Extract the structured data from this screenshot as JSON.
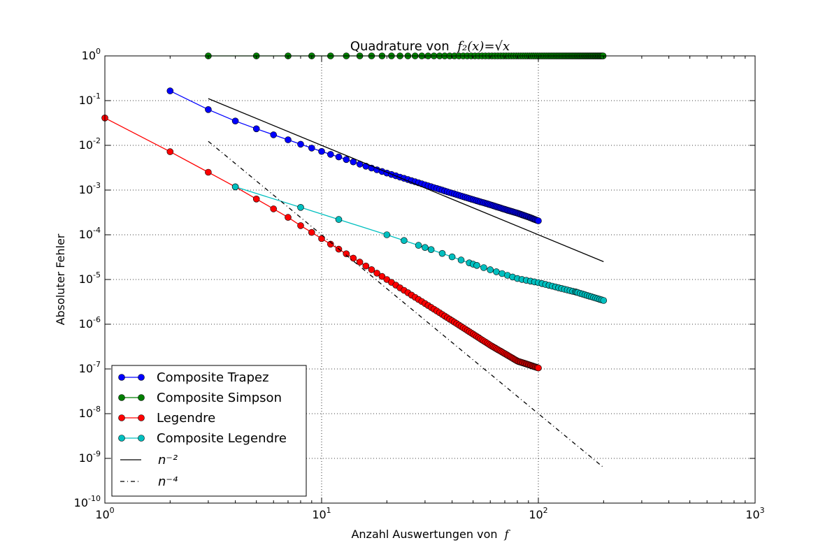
{
  "chart_data": {
    "type": "line",
    "title": "Quadrature von",
    "title_math": "f₂(x)=√x",
    "xlabel": "Anzahl Auswertungen von",
    "xlabel_math": "f",
    "ylabel": "Absoluter Fehler",
    "xscale": "log",
    "yscale": "log",
    "xlim": [
      1,
      1000
    ],
    "ylim": [
      1e-10,
      1
    ],
    "grid": true,
    "legend_position": "lower-left",
    "x_ticks": [
      {
        "base": "10",
        "exp": "0",
        "value": 1
      },
      {
        "base": "10",
        "exp": "1",
        "value": 10
      },
      {
        "base": "10",
        "exp": "2",
        "value": 100
      },
      {
        "base": "10",
        "exp": "3",
        "value": 1000
      }
    ],
    "y_ticks": [
      {
        "base": "10",
        "exp": "0",
        "value": 1
      },
      {
        "base": "10",
        "exp": "-1",
        "value": 0.1
      },
      {
        "base": "10",
        "exp": "-2",
        "value": 0.01
      },
      {
        "base": "10",
        "exp": "-3",
        "value": 0.001
      },
      {
        "base": "10",
        "exp": "-4",
        "value": 0.0001
      },
      {
        "base": "10",
        "exp": "-5",
        "value": 1e-05
      },
      {
        "base": "10",
        "exp": "-6",
        "value": 1e-06
      },
      {
        "base": "10",
        "exp": "-7",
        "value": 1e-07
      },
      {
        "base": "10",
        "exp": "-8",
        "value": 1e-08
      },
      {
        "base": "10",
        "exp": "-9",
        "value": 1e-09
      },
      {
        "base": "10",
        "exp": "-10",
        "value": 1e-10
      }
    ],
    "series": [
      {
        "name": "Composite Trapez",
        "color": "#0000ff",
        "marker": "circle",
        "line_style": "solid",
        "points": [
          [
            2,
            0.165
          ],
          [
            3,
            0.063
          ],
          [
            4,
            0.035
          ],
          [
            5,
            0.0235
          ],
          [
            6,
            0.0172
          ],
          [
            7,
            0.0133
          ],
          [
            8,
            0.0106
          ],
          [
            9,
            0.0087
          ],
          [
            10,
            0.0073
          ],
          [
            12,
            0.0055
          ],
          [
            15,
            0.0038
          ],
          [
            20,
            0.0024
          ],
          [
            25,
            0.00172
          ],
          [
            30,
            0.00131
          ],
          [
            40,
            0.00085
          ],
          [
            50,
            0.00061
          ],
          [
            60,
            0.00047
          ],
          [
            70,
            0.00037
          ],
          [
            80,
            0.000305
          ],
          [
            90,
            0.00025
          ],
          [
            100,
            0.000205
          ]
        ],
        "dense_fill": {
          "x_from": 10,
          "x_to": 100,
          "step": 1
        }
      },
      {
        "name": "Composite Simpson",
        "color": "#007f00",
        "marker": "circle",
        "line_style": "solid",
        "points": [
          [
            3,
            1
          ],
          [
            5,
            1
          ],
          [
            7,
            1
          ],
          [
            9,
            1
          ],
          [
            11,
            1
          ],
          [
            15,
            1
          ],
          [
            21,
            1
          ],
          [
            31,
            1
          ],
          [
            51,
            1
          ],
          [
            101,
            1
          ],
          [
            151,
            1
          ],
          [
            199,
            1
          ]
        ],
        "dense_fill": {
          "x_from": 11,
          "x_to": 199,
          "step": 2
        }
      },
      {
        "name": "Legendre",
        "color": "#ff0000",
        "marker": "circle",
        "line_style": "solid",
        "points": [
          [
            1,
            0.041
          ],
          [
            2,
            0.0072
          ],
          [
            3,
            0.0025
          ],
          [
            4,
            0.00118
          ],
          [
            5,
            0.00063
          ],
          [
            6,
            0.00038
          ],
          [
            7,
            0.000245
          ],
          [
            8,
            0.00016
          ],
          [
            9,
            0.000113
          ],
          [
            10,
            8.2e-05
          ],
          [
            15,
            2.45e-05
          ],
          [
            20,
            1e-05
          ],
          [
            30,
            2.9e-06
          ],
          [
            40,
            1.2e-06
          ],
          [
            50,
            6e-07
          ],
          [
            60,
            3.4e-07
          ],
          [
            70,
            2.2e-07
          ],
          [
            80,
            1.5e-07
          ],
          [
            90,
            1.25e-07
          ],
          [
            100,
            1.05e-07
          ]
        ],
        "dense_fill": {
          "x_from": 10,
          "x_to": 100,
          "step": 1
        }
      },
      {
        "name": "Composite Legendre",
        "color": "#00bfbf",
        "marker": "circle",
        "line_style": "solid",
        "points": [
          [
            4,
            0.00118
          ],
          [
            8,
            0.00041
          ],
          [
            12,
            0.00022
          ],
          [
            20,
            0.0001
          ],
          [
            30,
            5.2e-05
          ],
          [
            50,
            2.2e-05
          ],
          [
            80,
            1.05e-05
          ],
          [
            100,
            8.5e-06
          ],
          [
            150,
            5.2e-06
          ],
          [
            200,
            3.4e-06
          ]
        ],
        "dense_fill": {
          "x_from": 20,
          "x_to": 200,
          "step": 4
        }
      },
      {
        "name": "n⁻²",
        "color": "#000000",
        "marker": "none",
        "line_style": "solid",
        "points": [
          [
            3,
            0.111
          ],
          [
            200,
            2.5e-05
          ]
        ]
      },
      {
        "name": "n⁻⁴",
        "color": "#000000",
        "marker": "none",
        "line_style": "dashdot",
        "points": [
          [
            3,
            0.0123
          ],
          [
            200,
            6.25e-10
          ]
        ]
      }
    ]
  }
}
